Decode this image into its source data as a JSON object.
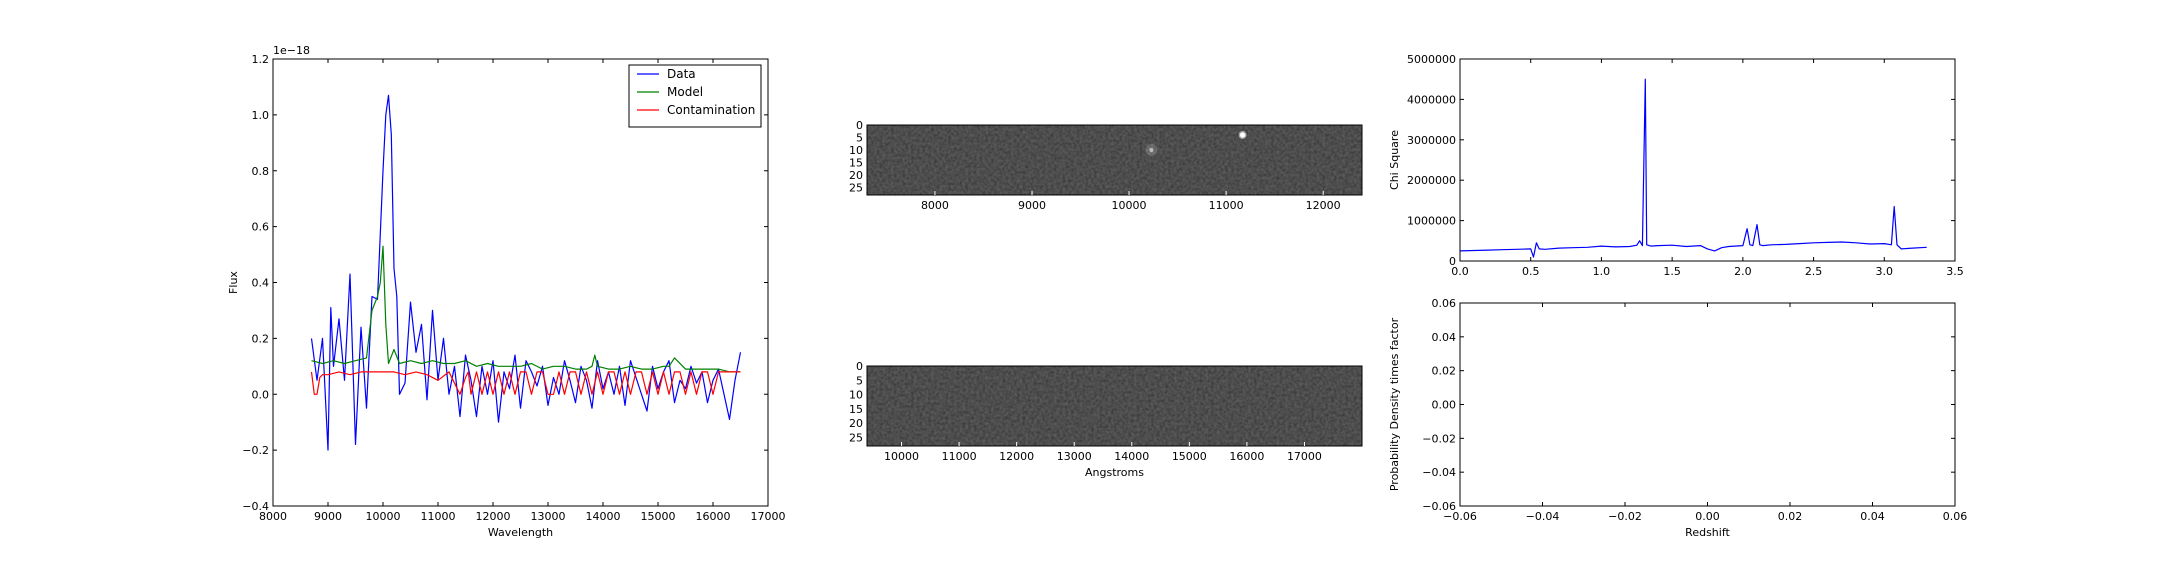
{
  "chart_data": [
    {
      "type": "line",
      "xlabel": "Wavelength",
      "ylabel": "Flux",
      "offset_label": "1e−18",
      "xlim": [
        8000,
        17000
      ],
      "ylim": [
        -0.4,
        1.2
      ],
      "xticks": [
        "8000",
        "9000",
        "10000",
        "11000",
        "12000",
        "13000",
        "14000",
        "15000",
        "16000",
        "17000"
      ],
      "yticks": [
        "−0.4",
        "−0.2",
        "0.0",
        "0.2",
        "0.4",
        "0.6",
        "0.8",
        "1.0",
        "1.2"
      ],
      "legend_position": "top-right",
      "series": [
        {
          "name": "Data",
          "color": "#0000ff",
          "x": [
            8700,
            8800,
            8900,
            9000,
            9050,
            9100,
            9200,
            9300,
            9400,
            9500,
            9600,
            9700,
            9800,
            9900,
            10000,
            10050,
            10100,
            10150,
            10200,
            10250,
            10300,
            10400,
            10500,
            10600,
            10700,
            10800,
            10900,
            11000,
            11100,
            11200,
            11300,
            11400,
            11500,
            11600,
            11700,
            11800,
            11900,
            12000,
            12100,
            12200,
            12300,
            12400,
            12500,
            12600,
            12700,
            12800,
            12900,
            13000,
            13100,
            13200,
            13300,
            13400,
            13500,
            13600,
            13700,
            13800,
            13900,
            14000,
            14100,
            14200,
            14300,
            14400,
            14500,
            14600,
            14700,
            14800,
            14900,
            15000,
            15100,
            15200,
            15300,
            15400,
            15500,
            15600,
            15700,
            15800,
            15900,
            16000,
            16100,
            16200,
            16300,
            16400,
            16500
          ],
          "y": [
            0.2,
            0.05,
            0.2,
            -0.2,
            0.31,
            0.1,
            0.27,
            0.05,
            0.43,
            -0.18,
            0.24,
            -0.05,
            0.35,
            0.34,
            0.8,
            1.0,
            1.07,
            0.93,
            0.45,
            0.35,
            0.0,
            0.04,
            0.33,
            0.15,
            0.25,
            -0.02,
            0.3,
            0.05,
            0.2,
            0.0,
            0.1,
            -0.08,
            0.14,
            0.05,
            -0.08,
            0.1,
            0.0,
            0.12,
            -0.1,
            0.08,
            0.02,
            0.14,
            -0.05,
            0.12,
            0.08,
            0.03,
            0.1,
            -0.04,
            0.06,
            0.0,
            0.12,
            0.05,
            -0.03,
            0.1,
            0.05,
            -0.05,
            0.12,
            0.02,
            0.08,
            0.0,
            0.1,
            -0.04,
            0.12,
            0.06,
            0.0,
            -0.06,
            0.1,
            0.02,
            0.08,
            0.12,
            -0.03,
            0.05,
            0.02,
            0.1,
            0.04,
            0.08,
            -0.03,
            0.05,
            0.09,
            0.0,
            -0.09,
            0.05,
            0.15
          ]
        },
        {
          "name": "Model",
          "color": "#008000",
          "x": [
            8700,
            8900,
            9100,
            9300,
            9500,
            9700,
            9800,
            9900,
            9950,
            10000,
            10050,
            10100,
            10200,
            10300,
            10500,
            10700,
            10900,
            11100,
            11300,
            11500,
            11700,
            11900,
            12100,
            12300,
            12500,
            12700,
            12900,
            13100,
            13300,
            13500,
            13700,
            13800,
            13850,
            13900,
            14100,
            14300,
            14500,
            14700,
            14900,
            15100,
            15200,
            15300,
            15500,
            15700,
            15900,
            16100,
            16300,
            16500
          ],
          "y": [
            0.12,
            0.11,
            0.12,
            0.11,
            0.12,
            0.13,
            0.3,
            0.35,
            0.4,
            0.53,
            0.25,
            0.11,
            0.16,
            0.11,
            0.12,
            0.11,
            0.12,
            0.11,
            0.11,
            0.12,
            0.1,
            0.11,
            0.1,
            0.1,
            0.1,
            0.11,
            0.09,
            0.1,
            0.1,
            0.09,
            0.09,
            0.1,
            0.14,
            0.1,
            0.09,
            0.09,
            0.1,
            0.09,
            0.09,
            0.1,
            0.1,
            0.13,
            0.09,
            0.09,
            0.09,
            0.09,
            0.08,
            0.08
          ]
        },
        {
          "name": "Contamination",
          "color": "#ff0000",
          "x": [
            8700,
            8750,
            8800,
            8850,
            8900,
            9000,
            9200,
            9400,
            9600,
            9800,
            10000,
            10200,
            10400,
            10600,
            10800,
            11000,
            11200,
            11400,
            11500,
            11550,
            11600,
            11700,
            11800,
            11900,
            12000,
            12100,
            12200,
            12300,
            12400,
            12500,
            12600,
            12700,
            12800,
            12900,
            13000,
            13100,
            13200,
            13300,
            13400,
            13500,
            13600,
            13700,
            13800,
            13900,
            14000,
            14100,
            14200,
            14300,
            14400,
            14500,
            14600,
            14700,
            14800,
            14900,
            15000,
            15100,
            15200,
            15300,
            15400,
            15500,
            15600,
            15700,
            15800,
            15900,
            16000,
            16100,
            16200,
            16300,
            16400,
            16500
          ],
          "y": [
            0.08,
            0.0,
            0.0,
            0.06,
            0.07,
            0.07,
            0.08,
            0.07,
            0.08,
            0.08,
            0.08,
            0.08,
            0.07,
            0.08,
            0.07,
            0.05,
            0.08,
            0.0,
            0.06,
            0.08,
            0.0,
            0.08,
            0.0,
            0.08,
            0.0,
            0.08,
            0.0,
            0.08,
            0.0,
            0.08,
            0.08,
            0.0,
            0.08,
            0.08,
            0.0,
            0.0,
            0.08,
            0.0,
            0.08,
            0.08,
            0.0,
            0.08,
            0.0,
            0.08,
            0.0,
            0.08,
            0.08,
            0.0,
            0.08,
            0.0,
            0.08,
            0.08,
            0.0,
            0.08,
            0.0,
            0.08,
            0.0,
            0.08,
            0.08,
            0.0,
            0.08,
            0.0,
            0.08,
            0.08,
            0.0,
            0.08,
            0.08,
            0.08,
            0.08,
            0.08
          ]
        }
      ]
    },
    {
      "type": "heatmap",
      "xlim": [
        7300,
        12400
      ],
      "ylim": [
        28,
        0
      ],
      "xticks": [
        "8000",
        "9000",
        "10000",
        "11000",
        "12000"
      ],
      "yticks": [
        "0",
        "5",
        "10",
        "15",
        "20",
        "25"
      ],
      "bright_spots": [
        {
          "x": 10230,
          "y": 10,
          "intensity": 0.35
        },
        {
          "x": 11170,
          "y": 4,
          "intensity": 1.0
        }
      ]
    },
    {
      "type": "heatmap",
      "xlabel": "Angstroms",
      "xlim": [
        9400,
        18000
      ],
      "ylim": [
        28,
        0
      ],
      "xticks": [
        "10000",
        "11000",
        "12000",
        "13000",
        "14000",
        "15000",
        "16000",
        "17000"
      ],
      "yticks": [
        "0",
        "5",
        "10",
        "15",
        "20",
        "25"
      ]
    },
    {
      "type": "line",
      "ylabel": "Chi Square",
      "xlim": [
        0.0,
        3.5
      ],
      "ylim": [
        0,
        5000000
      ],
      "xticks": [
        "0.0",
        "0.5",
        "1.0",
        "1.5",
        "2.0",
        "2.5",
        "3.0",
        "3.5"
      ],
      "yticks": [
        "0",
        "1000000",
        "2000000",
        "3000000",
        "4000000",
        "5000000"
      ],
      "series": [
        {
          "color": "#0000ff",
          "x": [
            0.0,
            0.1,
            0.2,
            0.3,
            0.4,
            0.5,
            0.52,
            0.54,
            0.56,
            0.6,
            0.7,
            0.8,
            0.9,
            1.0,
            1.1,
            1.2,
            1.25,
            1.27,
            1.29,
            1.3,
            1.31,
            1.32,
            1.35,
            1.4,
            1.5,
            1.6,
            1.7,
            1.75,
            1.8,
            1.85,
            1.9,
            2.0,
            2.03,
            2.05,
            2.07,
            2.1,
            2.12,
            2.14,
            2.2,
            2.3,
            2.4,
            2.5,
            2.6,
            2.7,
            2.8,
            2.9,
            3.0,
            3.05,
            3.07,
            3.09,
            3.12,
            3.2,
            3.3
          ],
          "y": [
            250000,
            260000,
            270000,
            280000,
            290000,
            300000,
            100000,
            450000,
            300000,
            290000,
            320000,
            330000,
            340000,
            370000,
            350000,
            360000,
            390000,
            500000,
            380000,
            2500000,
            4500000,
            400000,
            370000,
            380000,
            390000,
            360000,
            380000,
            300000,
            250000,
            330000,
            360000,
            380000,
            800000,
            400000,
            380000,
            900000,
            400000,
            380000,
            400000,
            410000,
            430000,
            450000,
            460000,
            470000,
            450000,
            420000,
            430000,
            400000,
            1350000,
            400000,
            300000,
            320000,
            340000
          ]
        }
      ]
    },
    {
      "type": "line",
      "xlabel": "Redshift",
      "ylabel": "Probability Density times factor",
      "xlim": [
        -0.06,
        0.06
      ],
      "ylim": [
        -0.06,
        0.06
      ],
      "xticks": [
        "−0.06",
        "−0.04",
        "−0.02",
        "0.00",
        "0.02",
        "0.04",
        "0.06"
      ],
      "yticks": [
        "−0.06",
        "−0.04",
        "−0.02",
        "0.00",
        "0.02",
        "0.04",
        "0.06"
      ],
      "series": []
    }
  ]
}
